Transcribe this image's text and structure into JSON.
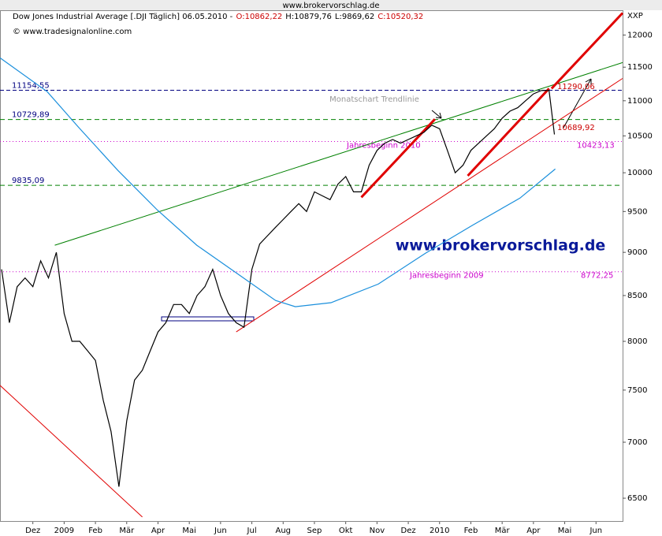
{
  "header": {
    "url": "www.brokervorschlag.de"
  },
  "chart_data": {
    "type": "line",
    "title_parts": [
      {
        "text": "Dow Jones Industrial Average [.DJI  Täglich] 06.05.2010 -",
        "color": "#000000"
      },
      {
        "text": "O:10862,22",
        "color": "#cc0000"
      },
      {
        "text": "H:10879,76",
        "color": "#000000"
      },
      {
        "text": "L:9869,62",
        "color": "#000000"
      },
      {
        "text": "C:10520,32",
        "color": "#cc0000"
      }
    ],
    "subtitle": "© www.tradesignalonline.com",
    "y_unit": "XXP",
    "watermark": "www.brokervorschlag.de",
    "log_scale": true,
    "xlim": [
      -0.55,
      19.35
    ],
    "ylim": [
      6300,
      12400
    ],
    "yticks": [
      6500,
      7000,
      7500,
      8000,
      8500,
      9000,
      9500,
      10000,
      10500,
      11000,
      11500,
      12000
    ],
    "xticks": [
      {
        "value": 0.5,
        "label": "Dez"
      },
      {
        "value": 1.5,
        "label": "2009"
      },
      {
        "value": 2.5,
        "label": "Feb"
      },
      {
        "value": 3.5,
        "label": "Mär"
      },
      {
        "value": 4.5,
        "label": "Apr"
      },
      {
        "value": 5.5,
        "label": "Mai"
      },
      {
        "value": 6.5,
        "label": "Jun"
      },
      {
        "value": 7.5,
        "label": "Jul"
      },
      {
        "value": 8.5,
        "label": "Aug"
      },
      {
        "value": 9.5,
        "label": "Sep"
      },
      {
        "value": 10.5,
        "label": "Okt"
      },
      {
        "value": 11.5,
        "label": "Nov"
      },
      {
        "value": 12.5,
        "label": "Dez"
      },
      {
        "value": 13.5,
        "label": "2010"
      },
      {
        "value": 14.5,
        "label": "Feb"
      },
      {
        "value": 15.5,
        "label": "Mär"
      },
      {
        "value": 16.5,
        "label": "Apr"
      },
      {
        "value": 17.5,
        "label": "Mai"
      },
      {
        "value": 18.5,
        "label": "Jun"
      }
    ],
    "series": [
      {
        "color": "#000000",
        "x": [
          -0.5,
          -0.25,
          0,
          0.25,
          0.5,
          0.75,
          1,
          1.25,
          1.5,
          1.75,
          2,
          2.25,
          2.5,
          2.75,
          3,
          3.25,
          3.5,
          3.75,
          4,
          4.25,
          4.5,
          4.75,
          5,
          5.25,
          5.5,
          5.75,
          6,
          6.25,
          6.5,
          6.75,
          7,
          7.25,
          7.5,
          7.75,
          8,
          8.25,
          8.5,
          8.75,
          9,
          9.25,
          9.5,
          9.75,
          10,
          10.25,
          10.5,
          10.75,
          11,
          11.25,
          11.5,
          11.75,
          12,
          12.25,
          12.5,
          12.75,
          13,
          13.25,
          13.5,
          13.75,
          14,
          14.25,
          14.5,
          14.75,
          15,
          15.25,
          15.5,
          15.75,
          16,
          16.25,
          16.5,
          16.75,
          17,
          17.17
        ],
        "values": [
          8800,
          8200,
          8600,
          8700,
          8600,
          8900,
          8700,
          9000,
          8300,
          8000,
          8000,
          7900,
          7800,
          7400,
          7100,
          6600,
          7200,
          7600,
          7700,
          7900,
          8100,
          8200,
          8400,
          8400,
          8300,
          8500,
          8600,
          8800,
          8500,
          8300,
          8200,
          8150,
          8800,
          9100,
          9200,
          9300,
          9400,
          9500,
          9600,
          9500,
          9750,
          9700,
          9650,
          9850,
          9950,
          9750,
          9750,
          10100,
          10300,
          10400,
          10450,
          10400,
          10450,
          10500,
          10550,
          10650,
          10600,
          10300,
          10000,
          10100,
          10300,
          10400,
          10500,
          10600,
          10750,
          10850,
          10900,
          11000,
          11100,
          11150,
          11150,
          10520
        ]
      },
      {
        "color": "#1a8fdc",
        "x": [
          -0.55,
          0.96,
          1.96,
          3.22,
          4.48,
          5.74,
          7.0,
          8.26,
          8.89,
          10.03,
          11.54,
          13.05,
          14.56,
          16.07,
          17.2
        ],
        "values": [
          11643,
          11133,
          10621,
          10030,
          9518,
          9085,
          8760,
          8445,
          8375,
          8420,
          8630,
          8990,
          9330,
          9670,
          10050
        ]
      }
    ],
    "trendlines": [
      {
        "color": "#008000",
        "width": 1,
        "x": [
          1.2,
          19.35
        ],
        "values": [
          9085,
          11570
        ]
      },
      {
        "color": "#e00000",
        "width": 1,
        "x": [
          -0.55,
          4.0
        ],
        "values": [
          7547,
          6340
        ]
      },
      {
        "color": "#e00000",
        "width": 1,
        "x": [
          7.0,
          19.35
        ],
        "values": [
          8100,
          11330
        ]
      },
      {
        "color": "#e00000",
        "width": 3,
        "x": [
          11.0,
          13.35
        ],
        "values": [
          9680,
          10735
        ]
      },
      {
        "color": "#e00000",
        "width": 3,
        "x": [
          14.4,
          17.0
        ],
        "values": [
          9960,
          11180
        ]
      },
      {
        "color": "#e00000",
        "width": 3,
        "x": [
          17.08,
          19.35
        ],
        "values": [
          11180,
          12355
        ]
      }
    ],
    "levels": [
      {
        "value": 11154.55,
        "label": "11154,55",
        "color": "#000080",
        "dash": "5,3"
      },
      {
        "value": 10729.89,
        "label": "10729,89",
        "color": "#008000",
        "dash": "6,4"
      },
      {
        "value": 9835.09,
        "label": "9835,09",
        "color": "#008000",
        "dash": "6,4"
      },
      {
        "value": 10423.13,
        "label": "10423,13",
        "color": "#cc00cc",
        "dash": "1,3",
        "note": "Jahresbeginn 2010"
      },
      {
        "value": 8772.25,
        "label": "8772,25",
        "color": "#cc00cc",
        "dash": "1,3",
        "note": "Jahresbeginn 2009"
      }
    ],
    "annotations": [
      {
        "value": 11290.06,
        "label": "11290,06"
      },
      {
        "value": 10689.92,
        "label": "10689,92"
      }
    ],
    "trendline_label": "Monatschart Trendlinie"
  }
}
